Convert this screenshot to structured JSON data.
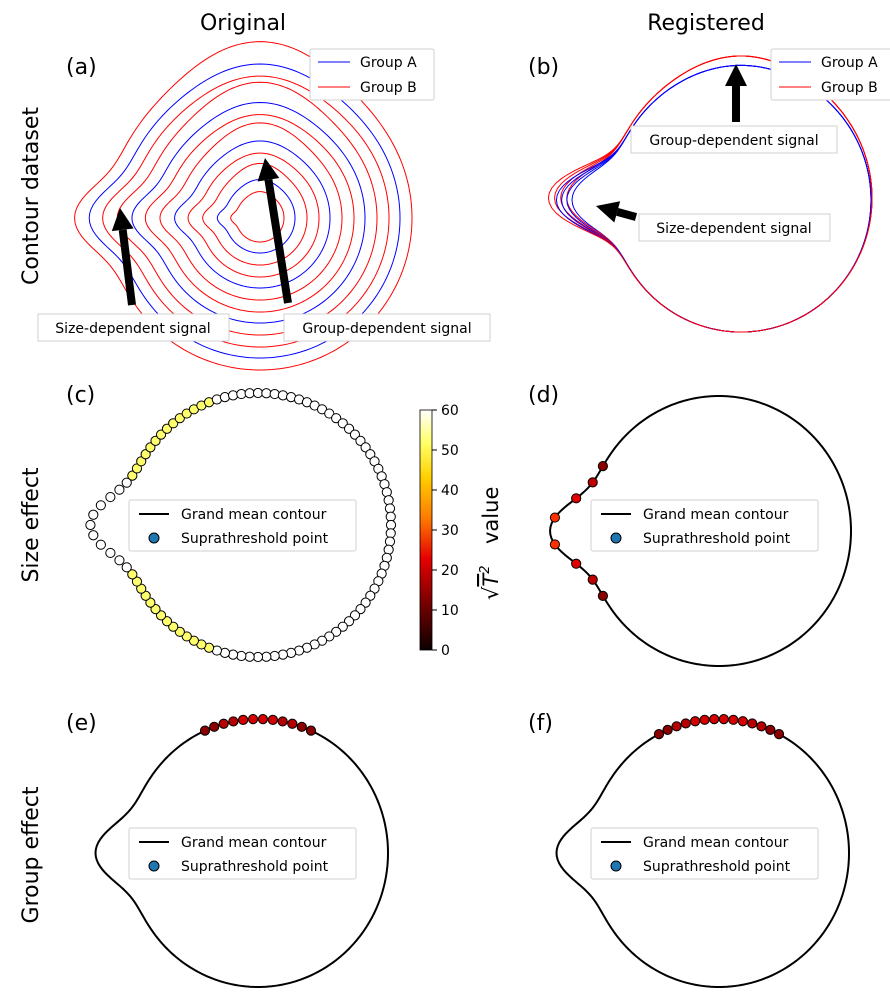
{
  "columns": [
    "Original",
    "Registered"
  ],
  "rows": [
    "Contour dataset",
    "Size effect",
    "Group effect"
  ],
  "panel_labels": [
    "(a)",
    "(b)",
    "(c)",
    "(d)",
    "(e)",
    "(f)"
  ],
  "legend_groups": {
    "a": "Group A",
    "b": "Group B"
  },
  "annotations": {
    "size_signal": "Size-dependent signal",
    "group_signal": "Group-dependent signal"
  },
  "legend_contour": {
    "line": "Grand mean contour",
    "point": "Suprathreshold point"
  },
  "colorbar": {
    "ticks": [
      "0",
      "10",
      "20",
      "30",
      "40",
      "50",
      "60"
    ],
    "label_suffix": "value",
    "min": 0,
    "max": 60
  },
  "colors": {
    "group_a": "#0000ff",
    "group_b": "#ff0000",
    "legend_point": "#1f77b4",
    "contour": "#000000"
  }
}
